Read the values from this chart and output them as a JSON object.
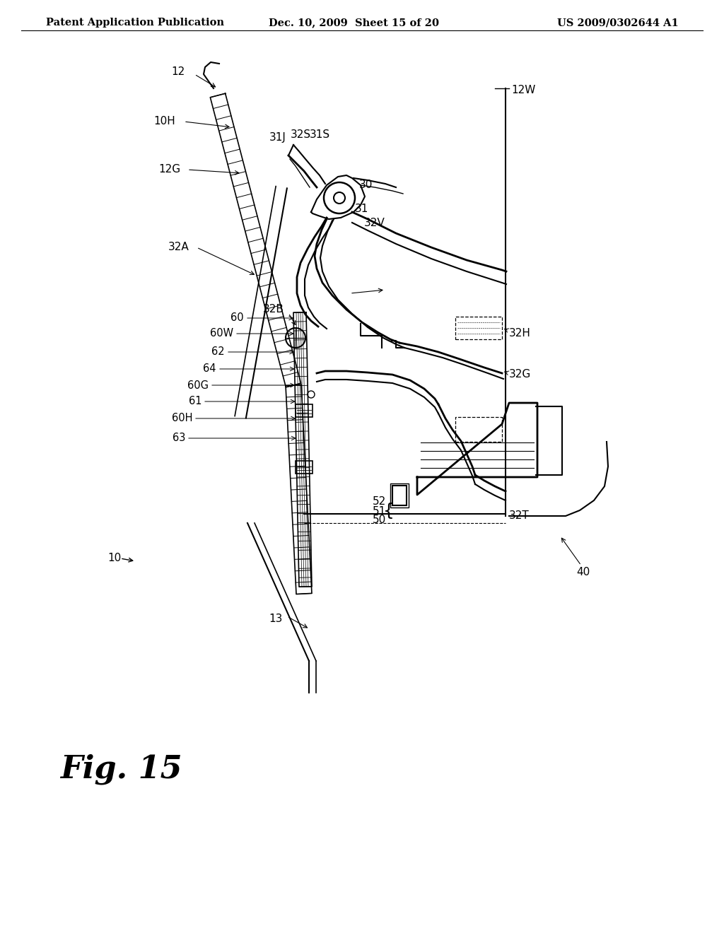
{
  "header_left": "Patent Application Publication",
  "header_mid": "Dec. 10, 2009  Sheet 15 of 20",
  "header_right": "US 2009/0302644 A1",
  "fig_label": "Fig. 15",
  "bg": "#ffffff",
  "lc": "#000000",
  "header_fs": 10.5,
  "fig_fs": 32,
  "label_fs": 11
}
